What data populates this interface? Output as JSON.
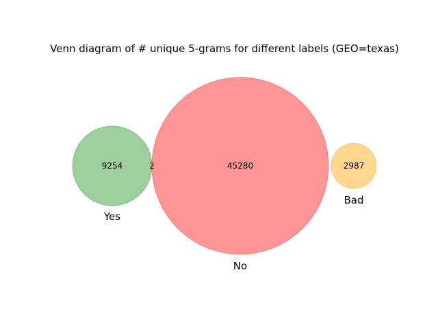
{
  "title": "Venn diagram of # unique 5-grams for different labels (GEO=texas)",
  "colors": {
    "yes": "#4ca64c",
    "no": "#ff4040",
    "bad": "#ffb733"
  },
  "sets": [
    {
      "key": "yes",
      "label": "Yes",
      "count": "9254"
    },
    {
      "key": "no",
      "label": "No",
      "count": "45280"
    },
    {
      "key": "bad",
      "label": "Bad",
      "count": "2987"
    }
  ],
  "intersections": [
    {
      "sets": [
        "yes",
        "no"
      ],
      "count": "2"
    }
  ]
}
